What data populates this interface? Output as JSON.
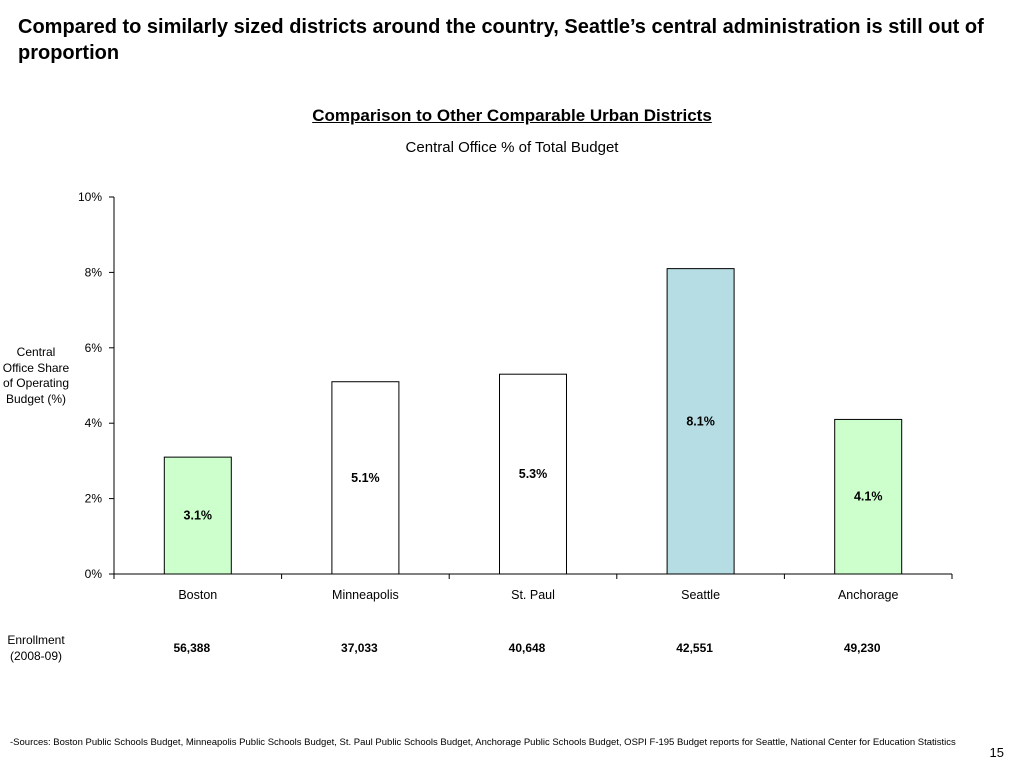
{
  "slide": {
    "title": "Compared to similarly sized districts around the country, Seattle’s central administration is still out of proportion",
    "page_number": "15"
  },
  "chart_data": {
    "type": "bar",
    "title": "Comparison to Other Comparable Urban Districts",
    "subtitle": "Central Office % of Total Budget",
    "ylabel": "Central Office Share of Operating Budget (%)",
    "xlabel": "",
    "ylim": [
      0,
      10
    ],
    "yticks": [
      "0%",
      "2%",
      "4%",
      "6%",
      "8%",
      "10%"
    ],
    "ytick_values": [
      0,
      2,
      4,
      6,
      8,
      10
    ],
    "categories": [
      "Boston",
      "Minneapolis",
      "St. Paul",
      "Seattle",
      "Anchorage"
    ],
    "values": [
      3.1,
      5.1,
      5.3,
      8.1,
      4.1
    ],
    "data_labels": [
      "3.1%",
      "5.1%",
      "5.3%",
      "8.1%",
      "4.1%"
    ],
    "bar_colors": [
      "#ccffcc",
      "#ffffff",
      "#ffffff",
      "#b6dde3",
      "#ccffcc"
    ],
    "grid": false,
    "legend": "none"
  },
  "enrollment": {
    "label": "Enrollment (2008-09)",
    "values": [
      "56,388",
      "37,033",
      "40,648",
      "42,551",
      "49,230"
    ]
  },
  "footnote": "-Sources: Boston Public Schools Budget, Minneapolis Public Schools Budget, St. Paul Public Schools Budget, Anchorage Public Schools Budget, OSPI F-195 Budget reports for Seattle, National Center for Education Statistics"
}
